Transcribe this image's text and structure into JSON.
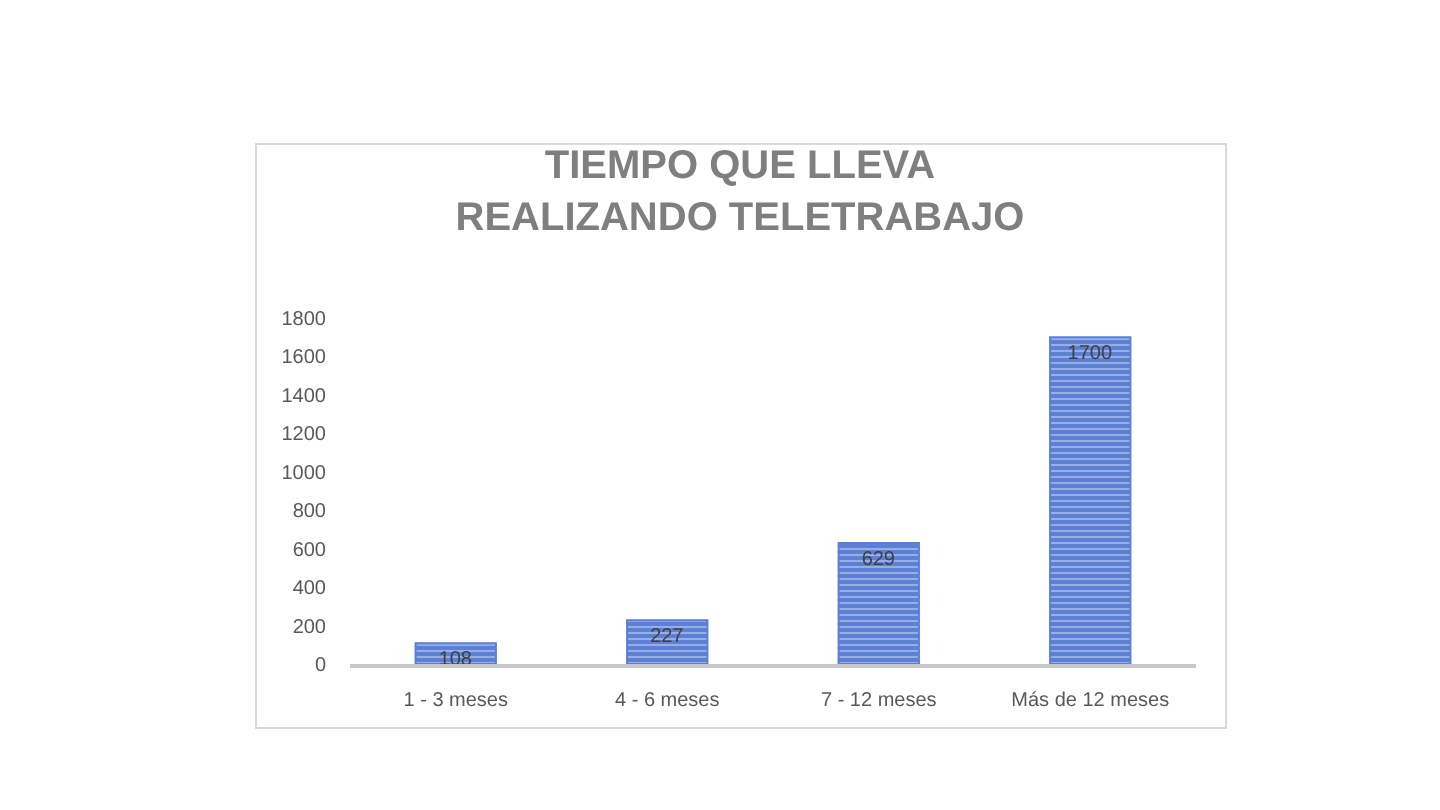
{
  "chart_data": {
    "type": "bar",
    "title": "TIEMPO QUE LLEVA\nREALIZANDO TELETRABAJO",
    "categories": [
      "1 - 3 meses",
      "4 - 6 meses",
      "7 - 12 meses",
      "Más de 12 meses"
    ],
    "values": [
      108,
      227,
      629,
      1700
    ],
    "color": "#5b7fd4",
    "ylim": [
      0,
      1800
    ],
    "yticks": [
      0,
      200,
      400,
      600,
      800,
      1000,
      1200,
      1400,
      1600,
      1800
    ],
    "data_labels": true
  }
}
